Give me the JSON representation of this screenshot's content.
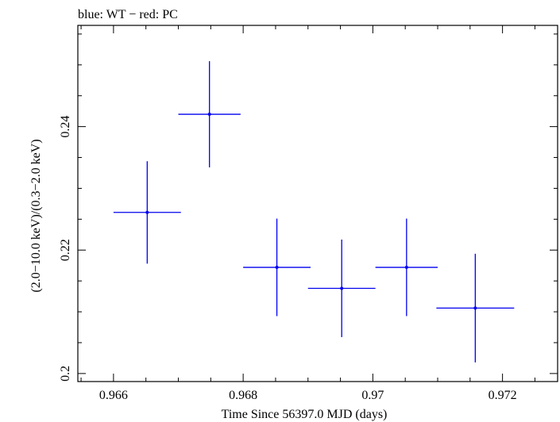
{
  "chart_data": {
    "type": "scatter",
    "title": "blue: WT − red: PC",
    "xlabel": "Time Since 56397.0 MJD (days)",
    "ylabel": "(2.0−10.0 keV)/(0.3−2.0 keV)",
    "xlim": [
      0.96545,
      0.97285
    ],
    "ylim": [
      0.1987,
      0.2564
    ],
    "x_ticks": [
      {
        "value": 0.966,
        "label": "0.966"
      },
      {
        "value": 0.968,
        "label": "0.968"
      },
      {
        "value": 0.97,
        "label": "0.97"
      },
      {
        "value": 0.972,
        "label": "0.972"
      }
    ],
    "y_ticks": [
      {
        "value": 0.2,
        "label": "0.2"
      },
      {
        "value": 0.22,
        "label": "0.22"
      },
      {
        "value": 0.24,
        "label": "0.24"
      }
    ],
    "series": [
      {
        "color": "#0000ee",
        "points": [
          {
            "x": 0.96652,
            "y": 0.2261,
            "xerr": 0.00052,
            "yerr": 0.0083
          },
          {
            "x": 0.96748,
            "y": 0.242,
            "xerr": 0.00048,
            "yerr": 0.0086
          },
          {
            "x": 0.96852,
            "y": 0.2172,
            "xerr": 0.00052,
            "yerr": 0.0079
          },
          {
            "x": 0.96952,
            "y": 0.2138,
            "xerr": 0.00052,
            "yerr": 0.0079
          },
          {
            "x": 0.97052,
            "y": 0.2172,
            "xerr": 0.00048,
            "yerr": 0.0079
          },
          {
            "x": 0.97158,
            "y": 0.2106,
            "xerr": 0.0006,
            "yerr": 0.0088
          }
        ]
      }
    ]
  }
}
